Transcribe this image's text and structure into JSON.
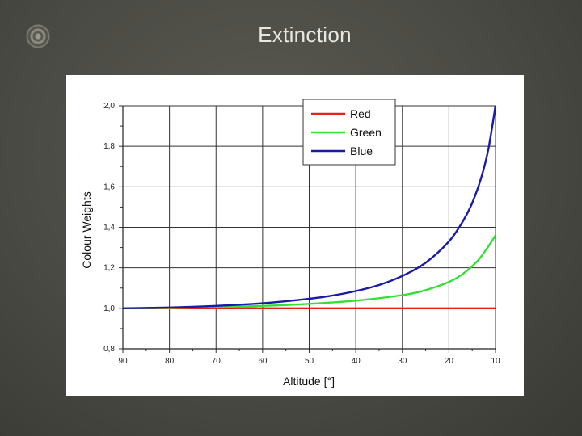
{
  "slide": {
    "title": "Extinction",
    "logo_icon": "concentric-circles-icon"
  },
  "chart_data": {
    "type": "line",
    "xlabel": "Altitude [°]",
    "ylabel": "Colour Weights",
    "xlim": [
      90,
      10
    ],
    "ylim": [
      0.8,
      2.0
    ],
    "x_reversed": true,
    "grid": true,
    "legend_position": "top-right",
    "x_ticks": [
      "90",
      "80",
      "70",
      "60",
      "50",
      "40",
      "30",
      "20",
      "10"
    ],
    "y_ticks": [
      "0,8",
      "1,0",
      "1,2",
      "1,4",
      "1,6",
      "1,8",
      "2,0"
    ],
    "x_tick_values": [
      90,
      80,
      70,
      60,
      50,
      40,
      30,
      20,
      10
    ],
    "y_tick_values": [
      0.8,
      1.0,
      1.2,
      1.4,
      1.6,
      1.8,
      2.0
    ],
    "series": [
      {
        "name": "Red",
        "color": "#e8201a",
        "x": [
          90,
          80,
          70,
          60,
          50,
          40,
          30,
          25,
          20,
          15,
          10
        ],
        "y": [
          1.0,
          1.0,
          1.0,
          1.0,
          1.0,
          1.0,
          1.0,
          1.0,
          1.0,
          1.0,
          1.0
        ]
      },
      {
        "name": "Green",
        "color": "#33e033",
        "x": [
          90,
          80,
          70,
          60,
          50,
          40,
          30,
          25,
          20,
          17,
          14,
          12,
          10
        ],
        "y": [
          1.0,
          1.002,
          1.006,
          1.012,
          1.022,
          1.038,
          1.065,
          1.09,
          1.13,
          1.17,
          1.23,
          1.29,
          1.36
        ]
      },
      {
        "name": "Blue",
        "color": "#1a1aaa",
        "x": [
          90,
          80,
          70,
          60,
          50,
          45,
          40,
          35,
          30,
          25,
          20,
          17,
          15,
          13,
          11.5,
          10
        ],
        "y": [
          1.0,
          1.004,
          1.012,
          1.025,
          1.047,
          1.063,
          1.085,
          1.115,
          1.16,
          1.225,
          1.33,
          1.43,
          1.52,
          1.65,
          1.79,
          2.0
        ]
      }
    ]
  }
}
